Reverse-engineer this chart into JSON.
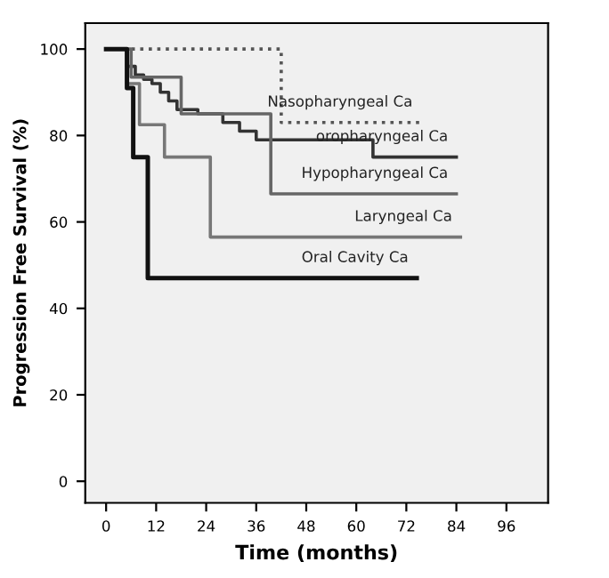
{
  "chart_data": {
    "type": "step",
    "xlabel": "Time (months)",
    "ylabel": "Progression Free Survival (%)",
    "xlim": [
      -5,
      106
    ],
    "ylim": [
      -5,
      106
    ],
    "xticks": [
      0,
      12,
      24,
      36,
      48,
      60,
      72,
      84,
      96
    ],
    "yticks": [
      0,
      20,
      40,
      60,
      80,
      100
    ],
    "grid": false,
    "legend": false,
    "series": [
      {
        "name": "Nasopharyngeal Ca",
        "color": "#555555",
        "line_style": "dotted",
        "x": [
          0,
          42,
          75.5
        ],
        "values": [
          100,
          83,
          83
        ]
      },
      {
        "name": "oropharyngeal Ca",
        "color": "#333333",
        "line_style": "solid",
        "x": [
          0,
          5,
          7,
          9,
          11,
          13,
          15,
          17,
          22,
          28,
          32,
          36,
          64,
          84
        ],
        "values": [
          100,
          96,
          94,
          93,
          92,
          90,
          88,
          86,
          85,
          83,
          81,
          79,
          75,
          75
        ]
      },
      {
        "name": "Hypopharyngeal Ca",
        "color": "#666666",
        "line_style": "solid",
        "x": [
          0,
          6,
          18,
          39.5,
          84
        ],
        "values": [
          100,
          93.5,
          85,
          66.5,
          66.5
        ]
      },
      {
        "name": "Laryngeal Ca",
        "color": "#777777",
        "line_style": "solid",
        "x": [
          0,
          5,
          8,
          14,
          25,
          85
        ],
        "values": [
          100,
          92,
          82.5,
          75,
          56.5,
          56.5
        ]
      },
      {
        "name": "Oral Cavity Ca",
        "color": "#111111",
        "line_style": "solid",
        "x": [
          0,
          5,
          6.5,
          10,
          74.5
        ],
        "values": [
          100,
          91,
          75,
          47,
          47
        ]
      }
    ]
  }
}
